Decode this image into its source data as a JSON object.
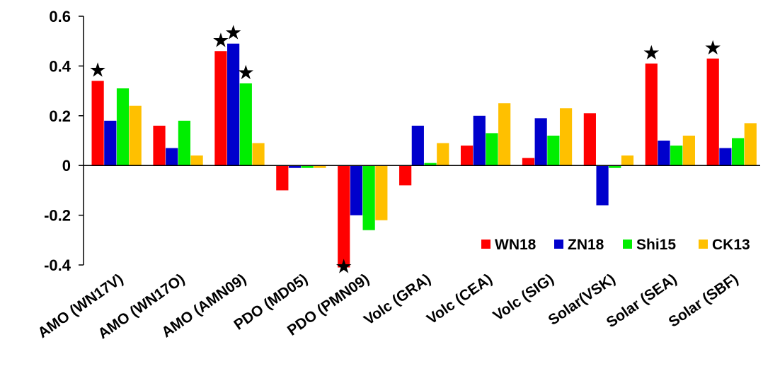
{
  "chart_data": {
    "type": "bar",
    "categories": [
      "AMO (WN17V)",
      "AMO (WN17O)",
      "AMO (AMN09)",
      "PDO (MD05)",
      "PDO (PMN09)",
      "Volc (GRA)",
      "Volc (CEA)",
      "Volc (SIG)",
      "Solar(VSK)",
      "Solar (SEA)",
      "Solar (SBF)"
    ],
    "series": [
      {
        "name": "WN18",
        "color": "#ff0000",
        "values": [
          0.34,
          0.16,
          0.46,
          -0.1,
          -0.41,
          -0.08,
          0.08,
          0.03,
          0.21,
          0.41,
          0.43
        ]
      },
      {
        "name": "ZN18",
        "color": "#0000cc",
        "values": [
          0.18,
          0.07,
          0.49,
          -0.01,
          -0.2,
          0.16,
          0.2,
          0.19,
          -0.16,
          0.1,
          0.07
        ]
      },
      {
        "name": "Shi15",
        "color": "#00ee00",
        "values": [
          0.31,
          0.18,
          0.33,
          -0.01,
          -0.26,
          0.01,
          0.13,
          0.12,
          -0.01,
          0.08,
          0.11
        ]
      },
      {
        "name": "CK13",
        "color": "#ffc000",
        "values": [
          0.24,
          0.04,
          0.09,
          -0.01,
          -0.22,
          0.09,
          0.25,
          0.23,
          0.04,
          0.12,
          0.17
        ]
      }
    ],
    "significance_marker": "★",
    "significant": [
      {
        "category": 0,
        "series": 0
      },
      {
        "category": 2,
        "series": 0
      },
      {
        "category": 2,
        "series": 1
      },
      {
        "category": 2,
        "series": 2
      },
      {
        "category": 4,
        "series": 0
      },
      {
        "category": 9,
        "series": 0
      },
      {
        "category": 10,
        "series": 0
      }
    ],
    "ylim": [
      -0.4,
      0.6
    ],
    "yticks": [
      "0.6",
      "0.4",
      "0.2",
      "0",
      "-0.2",
      "-0.4"
    ],
    "ytick_values": [
      0.6,
      0.4,
      0.2,
      0,
      -0.2,
      -0.4
    ],
    "grid": false,
    "legend_position": "bottom-right",
    "title": "",
    "xlabel": "",
    "ylabel": ""
  }
}
